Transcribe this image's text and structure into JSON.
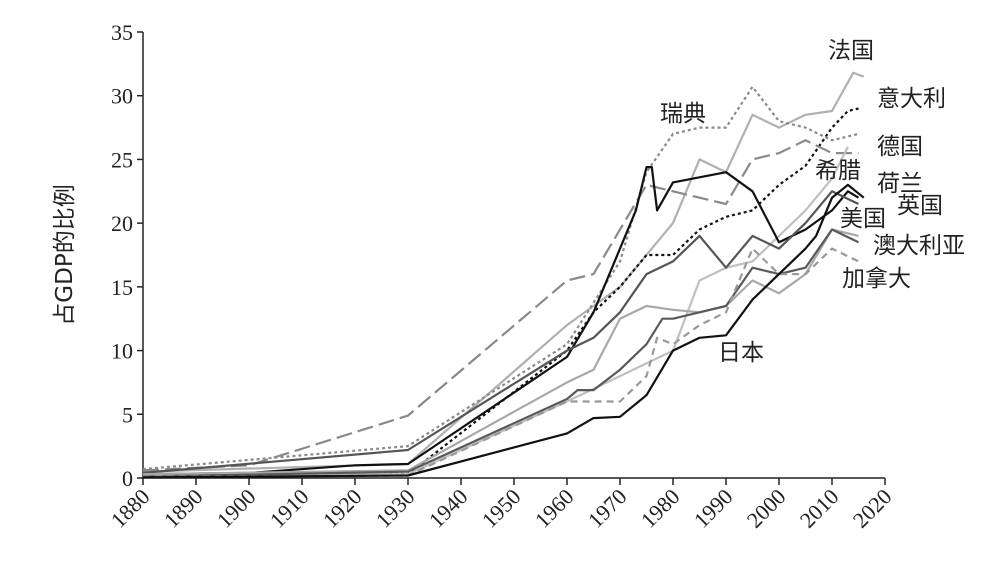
{
  "chart_data": {
    "type": "line",
    "title": "",
    "xlabel": "",
    "ylabel": "占GDP的比例",
    "xlim": [
      1880,
      2020
    ],
    "ylim": [
      0,
      35
    ],
    "xticks": [
      1880,
      1890,
      1900,
      1910,
      1920,
      1930,
      1940,
      1950,
      1960,
      1970,
      1980,
      1990,
      2000,
      2010,
      2020
    ],
    "yticks": [
      0,
      5,
      10,
      15,
      20,
      25,
      30,
      35
    ],
    "grid": false,
    "legend": "direct labels at line ends (right)",
    "series": [
      {
        "name": "法国",
        "color": "#b0b0b0",
        "style": "solid",
        "x": [
          1880,
          1930,
          1960,
          1970,
          1980,
          1985,
          1990,
          1995,
          2000,
          2005,
          2010,
          2014,
          2016
        ],
        "y": [
          0.5,
          1.1,
          12,
          15,
          20,
          25,
          24,
          28.5,
          27.5,
          28.5,
          28.8,
          31.8,
          31.5
        ]
      },
      {
        "name": "意大利",
        "color": "#111111",
        "style": "dotted",
        "x": [
          1880,
          1930,
          1960,
          1965,
          1970,
          1975,
          1980,
          1985,
          1990,
          1995,
          2000,
          2005,
          2010,
          2013,
          2015
        ],
        "y": [
          0.1,
          0.3,
          10,
          13,
          15,
          17.5,
          17.5,
          19.5,
          20.5,
          21,
          23,
          24.5,
          27.5,
          28.8,
          29
        ]
      },
      {
        "name": "瑞典",
        "color": "#8a8a8a",
        "style": "dotted",
        "x": [
          1880,
          1930,
          1960,
          1970,
          1975,
          1980,
          1985,
          1990,
          1995,
          2000,
          2005,
          2010,
          2015
        ],
        "y": [
          0.7,
          2.5,
          10.5,
          17,
          24,
          27,
          27.5,
          27.5,
          30.7,
          28,
          27.5,
          26.5,
          27
        ]
      },
      {
        "name": "德国",
        "color": "#8a8a8a",
        "style": "longdash",
        "x": [
          1880,
          1900,
          1930,
          1960,
          1965,
          1975,
          1980,
          1985,
          1990,
          1995,
          2000,
          2005,
          2010,
          2015
        ],
        "y": [
          0.6,
          1.0,
          4.9,
          15.5,
          16,
          23,
          22.5,
          22,
          21.5,
          25,
          25.5,
          26.5,
          25.5,
          25.5
        ]
      },
      {
        "name": "希腊",
        "color": "#c0c0c0",
        "style": "solid",
        "x": [
          1880,
          1930,
          1960,
          1970,
          1980,
          1985,
          1990,
          1995,
          2000,
          2005,
          2010,
          2013
        ],
        "y": [
          0.2,
          0.3,
          6,
          8,
          10,
          15.5,
          16.5,
          17,
          19,
          21,
          23.5,
          26
        ]
      },
      {
        "name": "荷兰",
        "color": "#111111",
        "style": "solid",
        "x": [
          1880,
          1900,
          1920,
          1930,
          1960,
          1965,
          1970,
          1973,
          1975,
          1976,
          1977,
          1980,
          1990,
          1995,
          2000,
          2005,
          2010,
          2013,
          2015
        ],
        "y": [
          0.3,
          0.4,
          1.0,
          1.1,
          9.5,
          13,
          18,
          21,
          24.4,
          24.4,
          21,
          23.2,
          24,
          22.5,
          18.5,
          19.5,
          21,
          22.5,
          22
        ]
      },
      {
        "name": "英国",
        "color": "#555555",
        "style": "solid",
        "x": [
          1880,
          1930,
          1960,
          1965,
          1970,
          1975,
          1980,
          1985,
          1990,
          1995,
          2000,
          2005,
          2010,
          2015
        ],
        "y": [
          0.4,
          2.2,
          10,
          11,
          13,
          16,
          17,
          19,
          16.5,
          19,
          18,
          20,
          22.5,
          21.5
        ]
      },
      {
        "name": "美国",
        "color": "#a8a8a8",
        "style": "solid",
        "x": [
          1880,
          1930,
          1960,
          1965,
          1970,
          1975,
          1980,
          1985,
          1990,
          1995,
          2000,
          2005,
          2010,
          2015
        ],
        "y": [
          0.3,
          0.6,
          7.5,
          8.5,
          12.5,
          13.5,
          13.2,
          13,
          13.5,
          15.5,
          14.5,
          16,
          19.5,
          19
        ]
      },
      {
        "name": "澳大利亚",
        "color": "#5a5a5a",
        "style": "solid",
        "x": [
          1880,
          1930,
          1960,
          1962,
          1965,
          1970,
          1975,
          1978,
          1980,
          1985,
          1990,
          1995,
          2000,
          2005,
          2010,
          2015
        ],
        "y": [
          0.1,
          0.5,
          6.2,
          6.9,
          6.9,
          8.5,
          10.5,
          12.5,
          12.5,
          13,
          13.5,
          16.5,
          16,
          16.5,
          19.5,
          18.5
        ]
      },
      {
        "name": "加拿大",
        "color": "#999999",
        "style": "dash",
        "x": [
          1880,
          1930,
          1960,
          1965,
          1970,
          1975,
          1977,
          1980,
          1985,
          1990,
          1995,
          2000,
          2005,
          2010,
          2015
        ],
        "y": [
          0.1,
          0.2,
          6,
          6,
          6,
          8,
          11,
          10.5,
          12,
          13,
          18,
          16,
          16,
          18,
          17
        ]
      },
      {
        "name": "日本",
        "color": "#111111",
        "style": "solid",
        "x": [
          1880,
          1930,
          1960,
          1965,
          1970,
          1975,
          1980,
          1985,
          1990,
          1995,
          2000,
          2005,
          2007,
          2010,
          2013,
          2016
        ],
        "y": [
          0.05,
          0.2,
          3.5,
          4.7,
          4.8,
          6.5,
          10,
          11,
          11.2,
          14,
          16,
          18,
          19,
          22,
          23,
          22
        ]
      }
    ]
  }
}
